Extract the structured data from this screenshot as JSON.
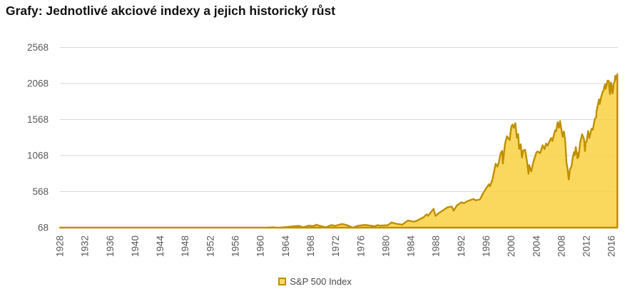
{
  "title": "Grafy: Jednotlivé akciové indexy a jejich historický růst",
  "legend": {
    "label": "S&P 500 Index"
  },
  "colors": {
    "area_fill": "#F9D142",
    "area_fill_opacity": 0.85,
    "area_stroke": "#BF8F00",
    "gridline": "#D9D9D9",
    "axis_text": "#595959",
    "legend_text": "#494949",
    "title_text": "#111111"
  },
  "chart_data": {
    "type": "area",
    "title": "Grafy: Jednotlivé akciové indexy a jejich historický růst",
    "xlabel": "",
    "ylabel": "",
    "grid": true,
    "legend_position": "bottom",
    "xlim": [
      1928,
      2017
    ],
    "ylim": [
      68,
      2568
    ],
    "y_ticks": [
      68,
      568,
      1068,
      1568,
      2068,
      2568
    ],
    "x_ticks": [
      1928,
      1932,
      1936,
      1940,
      1944,
      1948,
      1952,
      1956,
      1960,
      1964,
      1968,
      1972,
      1976,
      1980,
      1984,
      1988,
      1992,
      1996,
      2000,
      2004,
      2008,
      2012,
      2016
    ],
    "series": [
      {
        "name": "S&P 500 Index",
        "points": [
          [
            1928,
            17.7
          ],
          [
            1929,
            24.4
          ],
          [
            1929.7,
            31.3
          ],
          [
            1930.3,
            25.3
          ],
          [
            1931,
            15.3
          ],
          [
            1932.5,
            4.8
          ],
          [
            1933.5,
            10.9
          ],
          [
            1934.5,
            9.3
          ],
          [
            1936,
            13.4
          ],
          [
            1937.2,
            18.1
          ],
          [
            1938.3,
            8.5
          ],
          [
            1939,
            12.5
          ],
          [
            1940.4,
            9.7
          ],
          [
            1941,
            10.6
          ],
          [
            1942.3,
            7.7
          ],
          [
            1943,
            10.1
          ],
          [
            1944,
            11.7
          ],
          [
            1945,
            13.3
          ],
          [
            1946.4,
            18.7
          ],
          [
            1947,
            15.3
          ],
          [
            1948,
            15.2
          ],
          [
            1949.4,
            13.9
          ],
          [
            1950,
            16.8
          ],
          [
            1951,
            20.4
          ],
          [
            1952,
            23.8
          ],
          [
            1953,
            26.6
          ],
          [
            1953.7,
            23.1
          ],
          [
            1955,
            36.0
          ],
          [
            1956.6,
            49.6
          ],
          [
            1957.8,
            39.2
          ],
          [
            1959.6,
            60.5
          ],
          [
            1960.8,
            53.4
          ],
          [
            1961.95,
            72.6
          ],
          [
            1962.5,
            52.3
          ],
          [
            1963,
            63.1
          ],
          [
            1964,
            75.0
          ],
          [
            1965,
            84.8
          ],
          [
            1966.1,
            93.3
          ],
          [
            1966.75,
            73.2
          ],
          [
            1967.7,
            96.7
          ],
          [
            1968.4,
            89.1
          ],
          [
            1968.9,
            108.4
          ],
          [
            1969.5,
            91.8
          ],
          [
            1970.4,
            72.7
          ],
          [
            1971.3,
            103.9
          ],
          [
            1971.9,
            93.4
          ],
          [
            1973,
            118.1
          ],
          [
            1973.7,
            104.3
          ],
          [
            1974.75,
            63.5
          ],
          [
            1975.5,
            95.2
          ],
          [
            1976.7,
            105.2
          ],
          [
            1978.2,
            87.0
          ],
          [
            1978.7,
            103.9
          ],
          [
            1979,
            96.1
          ],
          [
            1980.3,
            102.1
          ],
          [
            1980.9,
            140.5
          ],
          [
            1981.6,
            122.8
          ],
          [
            1982.6,
            109.6
          ],
          [
            1983.5,
            166.4
          ],
          [
            1984.5,
            150.6
          ],
          [
            1985,
            167.2
          ],
          [
            1986,
            211.3
          ],
          [
            1986.5,
            252.0
          ],
          [
            1986.7,
            231.3
          ],
          [
            1987.6,
            329.8
          ],
          [
            1987.9,
            230.3
          ],
          [
            1988.5,
            273.5
          ],
          [
            1989.8,
            349.2
          ],
          [
            1990.5,
            361.2
          ],
          [
            1990.8,
            304.0
          ],
          [
            1991.3,
            375.2
          ],
          [
            1992,
            417.1
          ],
          [
            1992.5,
            408.1
          ],
          [
            1993,
            435.7
          ],
          [
            1994,
            466.5
          ],
          [
            1994.3,
            445.8
          ],
          [
            1995,
            459.3
          ],
          [
            1995.5,
            544.8
          ],
          [
            1996,
            615.9
          ],
          [
            1996.45,
            670.6
          ],
          [
            1996.6,
            639.9
          ],
          [
            1997,
            740.7
          ],
          [
            1997.5,
            954.3
          ],
          [
            1997.8,
            914.6
          ],
          [
            1998,
            970.4
          ],
          [
            1998.3,
            1101.8
          ],
          [
            1998.55,
            1133.8
          ],
          [
            1998.65,
            957.3
          ],
          [
            1999,
            1229.2
          ],
          [
            1999.3,
            1335.2
          ],
          [
            1999.75,
            1282.7
          ],
          [
            2000,
            1469.3
          ],
          [
            2000.2,
            1498.6
          ],
          [
            2000.4,
            1452.4
          ],
          [
            2000.65,
            1517.7
          ],
          [
            2000.9,
            1314.9
          ],
          [
            2001.1,
            1366.0
          ],
          [
            2001.25,
            1160.3
          ],
          [
            2001.5,
            1224.4
          ],
          [
            2001.7,
            1040.9
          ],
          [
            2001.9,
            1139.5
          ],
          [
            2002.2,
            1147.4
          ],
          [
            2002.5,
            989.8
          ],
          [
            2002.75,
            815.3
          ],
          [
            2002.85,
            936.3
          ],
          [
            2003.2,
            848.2
          ],
          [
            2003.5,
            974.5
          ],
          [
            2004,
            1111.9
          ],
          [
            2004.2,
            1126.2
          ],
          [
            2004.6,
            1101.7
          ],
          [
            2005,
            1211.9
          ],
          [
            2005.3,
            1156.8
          ],
          [
            2005.55,
            1234.2
          ],
          [
            2005.8,
            1207.0
          ],
          [
            2006,
            1248.3
          ],
          [
            2006.35,
            1310.6
          ],
          [
            2006.55,
            1270.1
          ],
          [
            2007,
            1418.3
          ],
          [
            2007.15,
            1406.8
          ],
          [
            2007.4,
            1530.6
          ],
          [
            2007.6,
            1455.3
          ],
          [
            2007.78,
            1549.4
          ],
          [
            2007.9,
            1481.1
          ],
          [
            2008.2,
            1330.6
          ],
          [
            2008.4,
            1400.4
          ],
          [
            2008.6,
            1267.4
          ],
          [
            2008.8,
            968.8
          ],
          [
            2008.95,
            896.2
          ],
          [
            2009.17,
            735.1
          ],
          [
            2009.35,
            872.8
          ],
          [
            2009.6,
            919.3
          ],
          [
            2009.8,
            1036.2
          ],
          [
            2010,
            1115.1
          ],
          [
            2010.1,
            1073.9
          ],
          [
            2010.3,
            1186.7
          ],
          [
            2010.55,
            1030.7
          ],
          [
            2010.65,
            1101.6
          ],
          [
            2010.72,
            1049.3
          ],
          [
            2011,
            1257.6
          ],
          [
            2011.3,
            1363.6
          ],
          [
            2011.6,
            1292.3
          ],
          [
            2011.75,
            1131.4
          ],
          [
            2011.85,
            1253.3
          ],
          [
            2012,
            1257.6
          ],
          [
            2012.25,
            1408.5
          ],
          [
            2012.45,
            1310.3
          ],
          [
            2012.7,
            1406.6
          ],
          [
            2012.8,
            1440.7
          ],
          [
            2013,
            1426.2
          ],
          [
            2013.3,
            1569.2
          ],
          [
            2013.55,
            1606.3
          ],
          [
            2013.6,
            1685.7
          ],
          [
            2014,
            1848.4
          ],
          [
            2014.1,
            1782.6
          ],
          [
            2014.35,
            1883.9
          ],
          [
            2014.6,
            1960.2
          ],
          [
            2014.75,
            1972.3
          ],
          [
            2014.8,
            2018.1
          ],
          [
            2015,
            2058.9
          ],
          [
            2015.08,
            1995.0
          ],
          [
            2015.35,
            2107.4
          ],
          [
            2015.55,
            2103.8
          ],
          [
            2015.67,
            1972.2
          ],
          [
            2015.75,
            1920.0
          ],
          [
            2015.9,
            2080.4
          ],
          [
            2016,
            2043.9
          ],
          [
            2016.1,
            1940.2
          ],
          [
            2016.17,
            1932.2
          ],
          [
            2016.33,
            2059.7
          ],
          [
            2016.5,
            2098.9
          ],
          [
            2016.58,
            2173.6
          ],
          [
            2016.7,
            2168.3
          ],
          [
            2016.8,
            2126.2
          ],
          [
            2016.92,
            2198.8
          ]
        ]
      }
    ]
  }
}
